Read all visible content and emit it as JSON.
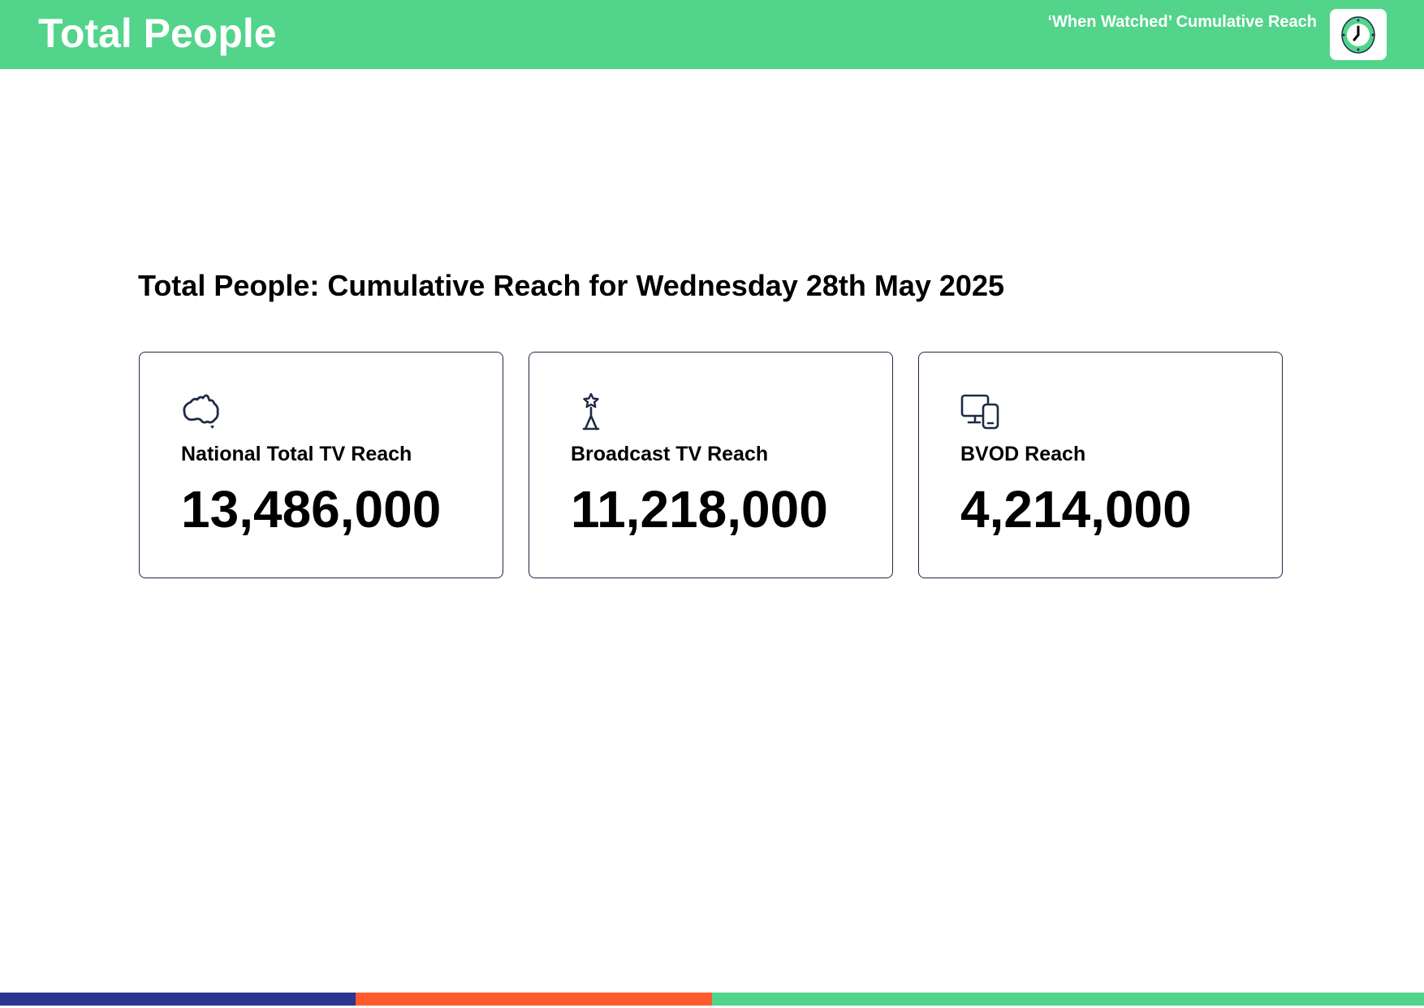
{
  "header": {
    "title": "Total People",
    "subtitle": "‘When Watched’ Cumulative Reach",
    "badge_icon": "clock-icon",
    "background_color": "#52d48b"
  },
  "main": {
    "heading": "Total People: Cumulative Reach for Wednesday 28th May 2025"
  },
  "cards": [
    {
      "icon": "australia-map-icon",
      "label": "National Total TV Reach",
      "value": "13,486,000"
    },
    {
      "icon": "broadcast-tower-icon",
      "label": "Broadcast TV Reach",
      "value": "11,218,000"
    },
    {
      "icon": "devices-icon",
      "label": "BVOD Reach",
      "value": "4,214,000"
    }
  ],
  "footer": {
    "stripe_colors": [
      "#2c3590",
      "#ff5a2c",
      "#52d48b"
    ]
  },
  "colors": {
    "accent_green": "#52d48b",
    "card_border": "#1f2a44",
    "icon_stroke": "#1f2a44"
  }
}
